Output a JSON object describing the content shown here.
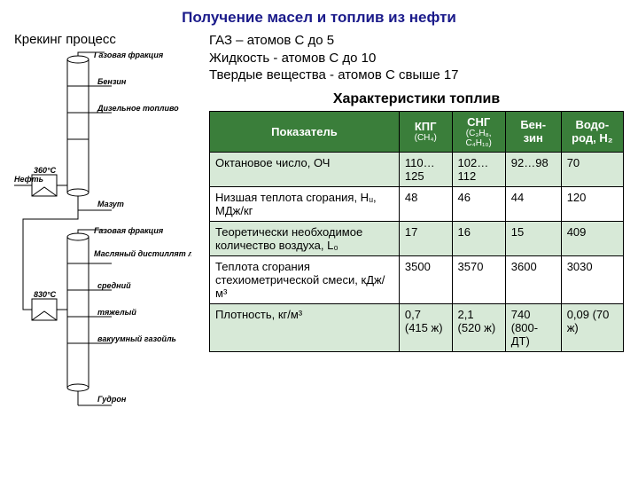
{
  "title": "Получение масел и топлив из нефти",
  "subtitle_left": "Крекинг процесс",
  "info": {
    "l1": "ГАЗ – атомов С до 5",
    "l2": "Жидкость - атомов С до 10",
    "l3": "Твердые вещества - атомов С свыше 17"
  },
  "diagram_labels": {
    "gas_fraction": "Газовая фракция",
    "benzin": "Бензин",
    "diesel": "Дизельное топливо",
    "neft": "Нефть",
    "mazut": "Мазут",
    "t360": "360°С",
    "t830": "830°С",
    "gas_fraction2": "Газовая фракция",
    "masl_light": "Масляный дистиллят легкий",
    "medium": "средний",
    "heavy": "тяжелый",
    "vacuum": "вакуумный газойль",
    "gudron": "Гудрон"
  },
  "table_title": "Характеристики топлив",
  "table": {
    "headers": {
      "indicator": "Показатель",
      "kpg": "КПГ",
      "kpg_sub": "(CH₄)",
      "sng": "СНГ",
      "sng_sub": "(C₃H₈, C₄H₁₀)",
      "benzin": "Бен-зин",
      "hydrogen": "Водо-род, H₂"
    },
    "rows": [
      {
        "name": "Октановое число, ОЧ",
        "v1": "110…125",
        "v2": "102…112",
        "v3": "92…98",
        "v4": "70"
      },
      {
        "name": "Низшая теплота сгорания, Hᵤ, МДж/кг",
        "v1": "48",
        "v2": "46",
        "v3": "44",
        "v4": "120"
      },
      {
        "name": "Теоретически необходимое количество воздуха, L₀",
        "v1": "17",
        "v2": "16",
        "v3": "15",
        "v4": "409"
      },
      {
        "name": "Теплота сгорания стехиометрической смеси, кДж/м³",
        "v1": "3500",
        "v2": "3570",
        "v3": "3600",
        "v4": "3030"
      },
      {
        "name": "Плотность, кг/м³",
        "v1": "0,7 (415 ж)",
        "v2": "2,1 (520 ж)",
        "v3": "740 (800-ДТ)",
        "v4": "0,09 (70 ж)"
      }
    ]
  },
  "colors": {
    "header_bg": "#3a7e3a",
    "row_alt": "#d7e9d7",
    "title_color": "#1a1a8a"
  }
}
